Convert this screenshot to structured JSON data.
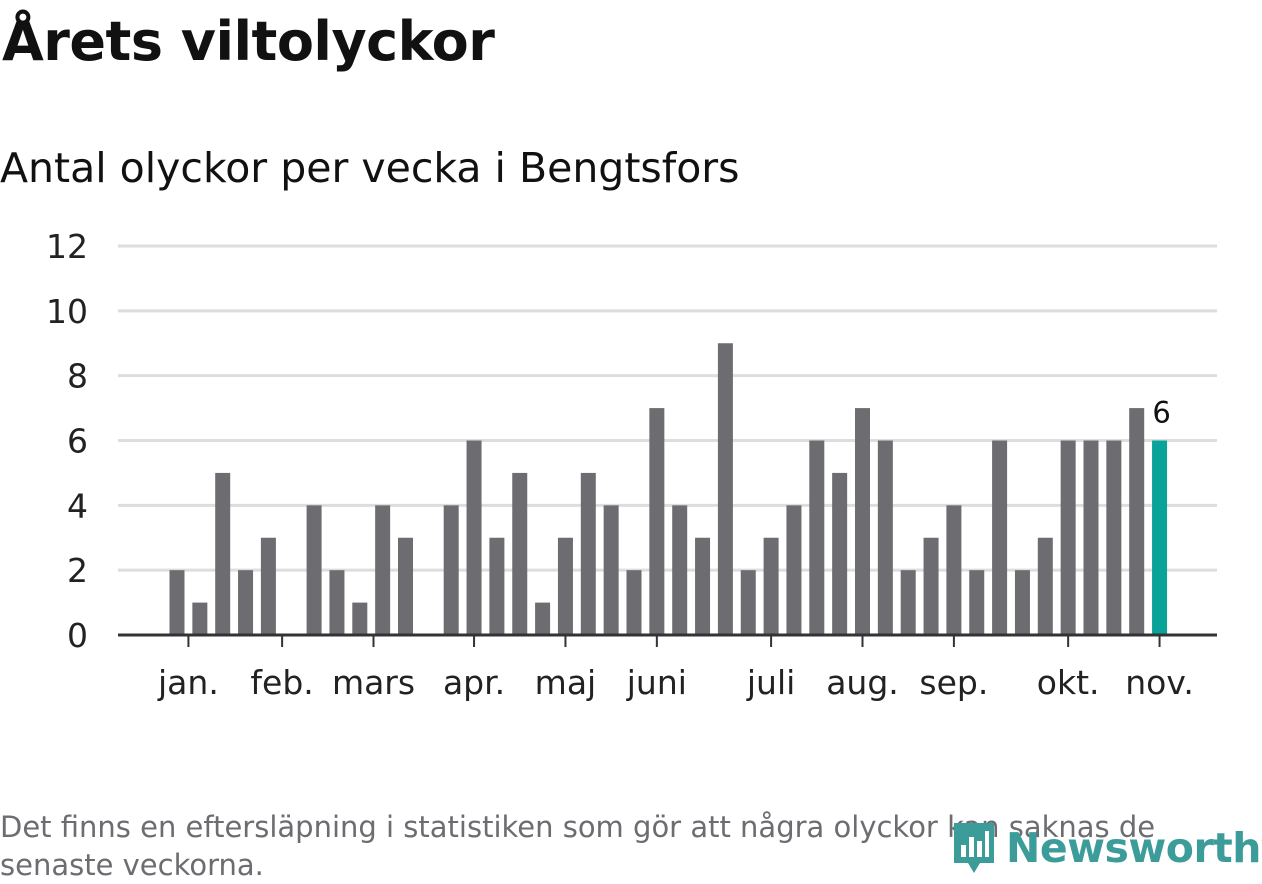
{
  "title": "Årets viltolyckor",
  "subtitle": "Antal olyckor per vecka i Bengtsfors",
  "footnote": "Det finns en eftersläpning i statistiken som gör att några olyckor kan saknas de senaste veckorna.",
  "brand": {
    "name": "Newsworthy",
    "color": "#3c9c9a",
    "icon": "bar-chart-bubble-icon"
  },
  "colors": {
    "bar": "#6d6c71",
    "highlight": "#0aa39a",
    "grid": "#dddddd",
    "axis": "#333333"
  },
  "chart_data": {
    "type": "bar",
    "title": "Antal olyckor per vecka i Bengtsfors",
    "xlabel": "",
    "ylabel": "",
    "ylim": [
      0,
      12
    ],
    "yticks": [
      0,
      2,
      4,
      6,
      8,
      10,
      12
    ],
    "grid": true,
    "weeks": [
      1,
      2,
      3,
      4,
      5,
      6,
      7,
      8,
      9,
      10,
      11,
      12,
      13,
      14,
      15,
      16,
      17,
      18,
      19,
      20,
      21,
      22,
      23,
      24,
      25,
      26,
      27,
      28,
      29,
      30,
      31,
      32,
      33,
      34,
      35,
      36,
      37,
      38,
      39,
      40,
      41,
      42,
      43,
      44,
      45,
      46
    ],
    "values": [
      0,
      0,
      2,
      1,
      5,
      2,
      3,
      0,
      4,
      2,
      1,
      4,
      3,
      0,
      4,
      6,
      3,
      5,
      1,
      3,
      5,
      4,
      2,
      7,
      4,
      3,
      9,
      2,
      3,
      4,
      6,
      5,
      7,
      6,
      2,
      3,
      4,
      2,
      6,
      2,
      3,
      6,
      6,
      6,
      7,
      6
    ],
    "month_labels": [
      {
        "label": "jan.",
        "week": 3.5
      },
      {
        "label": "feb.",
        "week": 7.6
      },
      {
        "label": "mars",
        "week": 11.6
      },
      {
        "label": "apr.",
        "week": 16.0
      },
      {
        "label": "maj",
        "week": 20.0
      },
      {
        "label": "juni",
        "week": 24.0
      },
      {
        "label": "juli",
        "week": 29.0
      },
      {
        "label": "aug.",
        "week": 33.0
      },
      {
        "label": "sep.",
        "week": 37.0
      },
      {
        "label": "okt.",
        "week": 42.0
      },
      {
        "label": "nov.",
        "week": 46.0
      }
    ],
    "highlight": {
      "week": 46,
      "value": 6,
      "label": "6"
    }
  }
}
